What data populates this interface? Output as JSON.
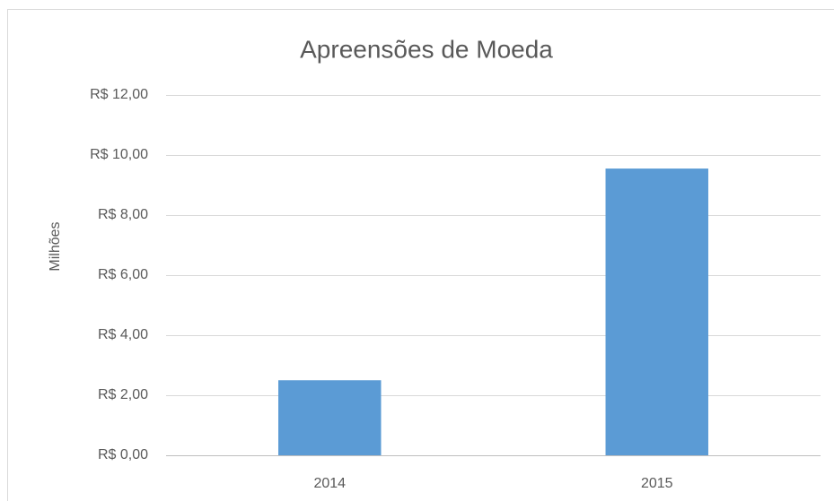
{
  "chart_data": {
    "type": "bar",
    "title": "Apreensões de Moeda",
    "y_label": "Milhões",
    "categories": [
      "2014",
      "2015"
    ],
    "values": [
      2.5,
      9.55
    ],
    "color": "#5b9bd5",
    "ylim": [
      0,
      12
    ],
    "yticks": [
      {
        "value": 0,
        "label": "R$ 0,00"
      },
      {
        "value": 2,
        "label": "R$ 2,00"
      },
      {
        "value": 4,
        "label": "R$ 4,00"
      },
      {
        "value": 6,
        "label": "R$ 6,00"
      },
      {
        "value": 8,
        "label": "R$ 8,00"
      },
      {
        "value": 10,
        "label": "R$ 10,00"
      },
      {
        "value": 12,
        "label": "R$ 12,00"
      }
    ],
    "grid": true
  }
}
